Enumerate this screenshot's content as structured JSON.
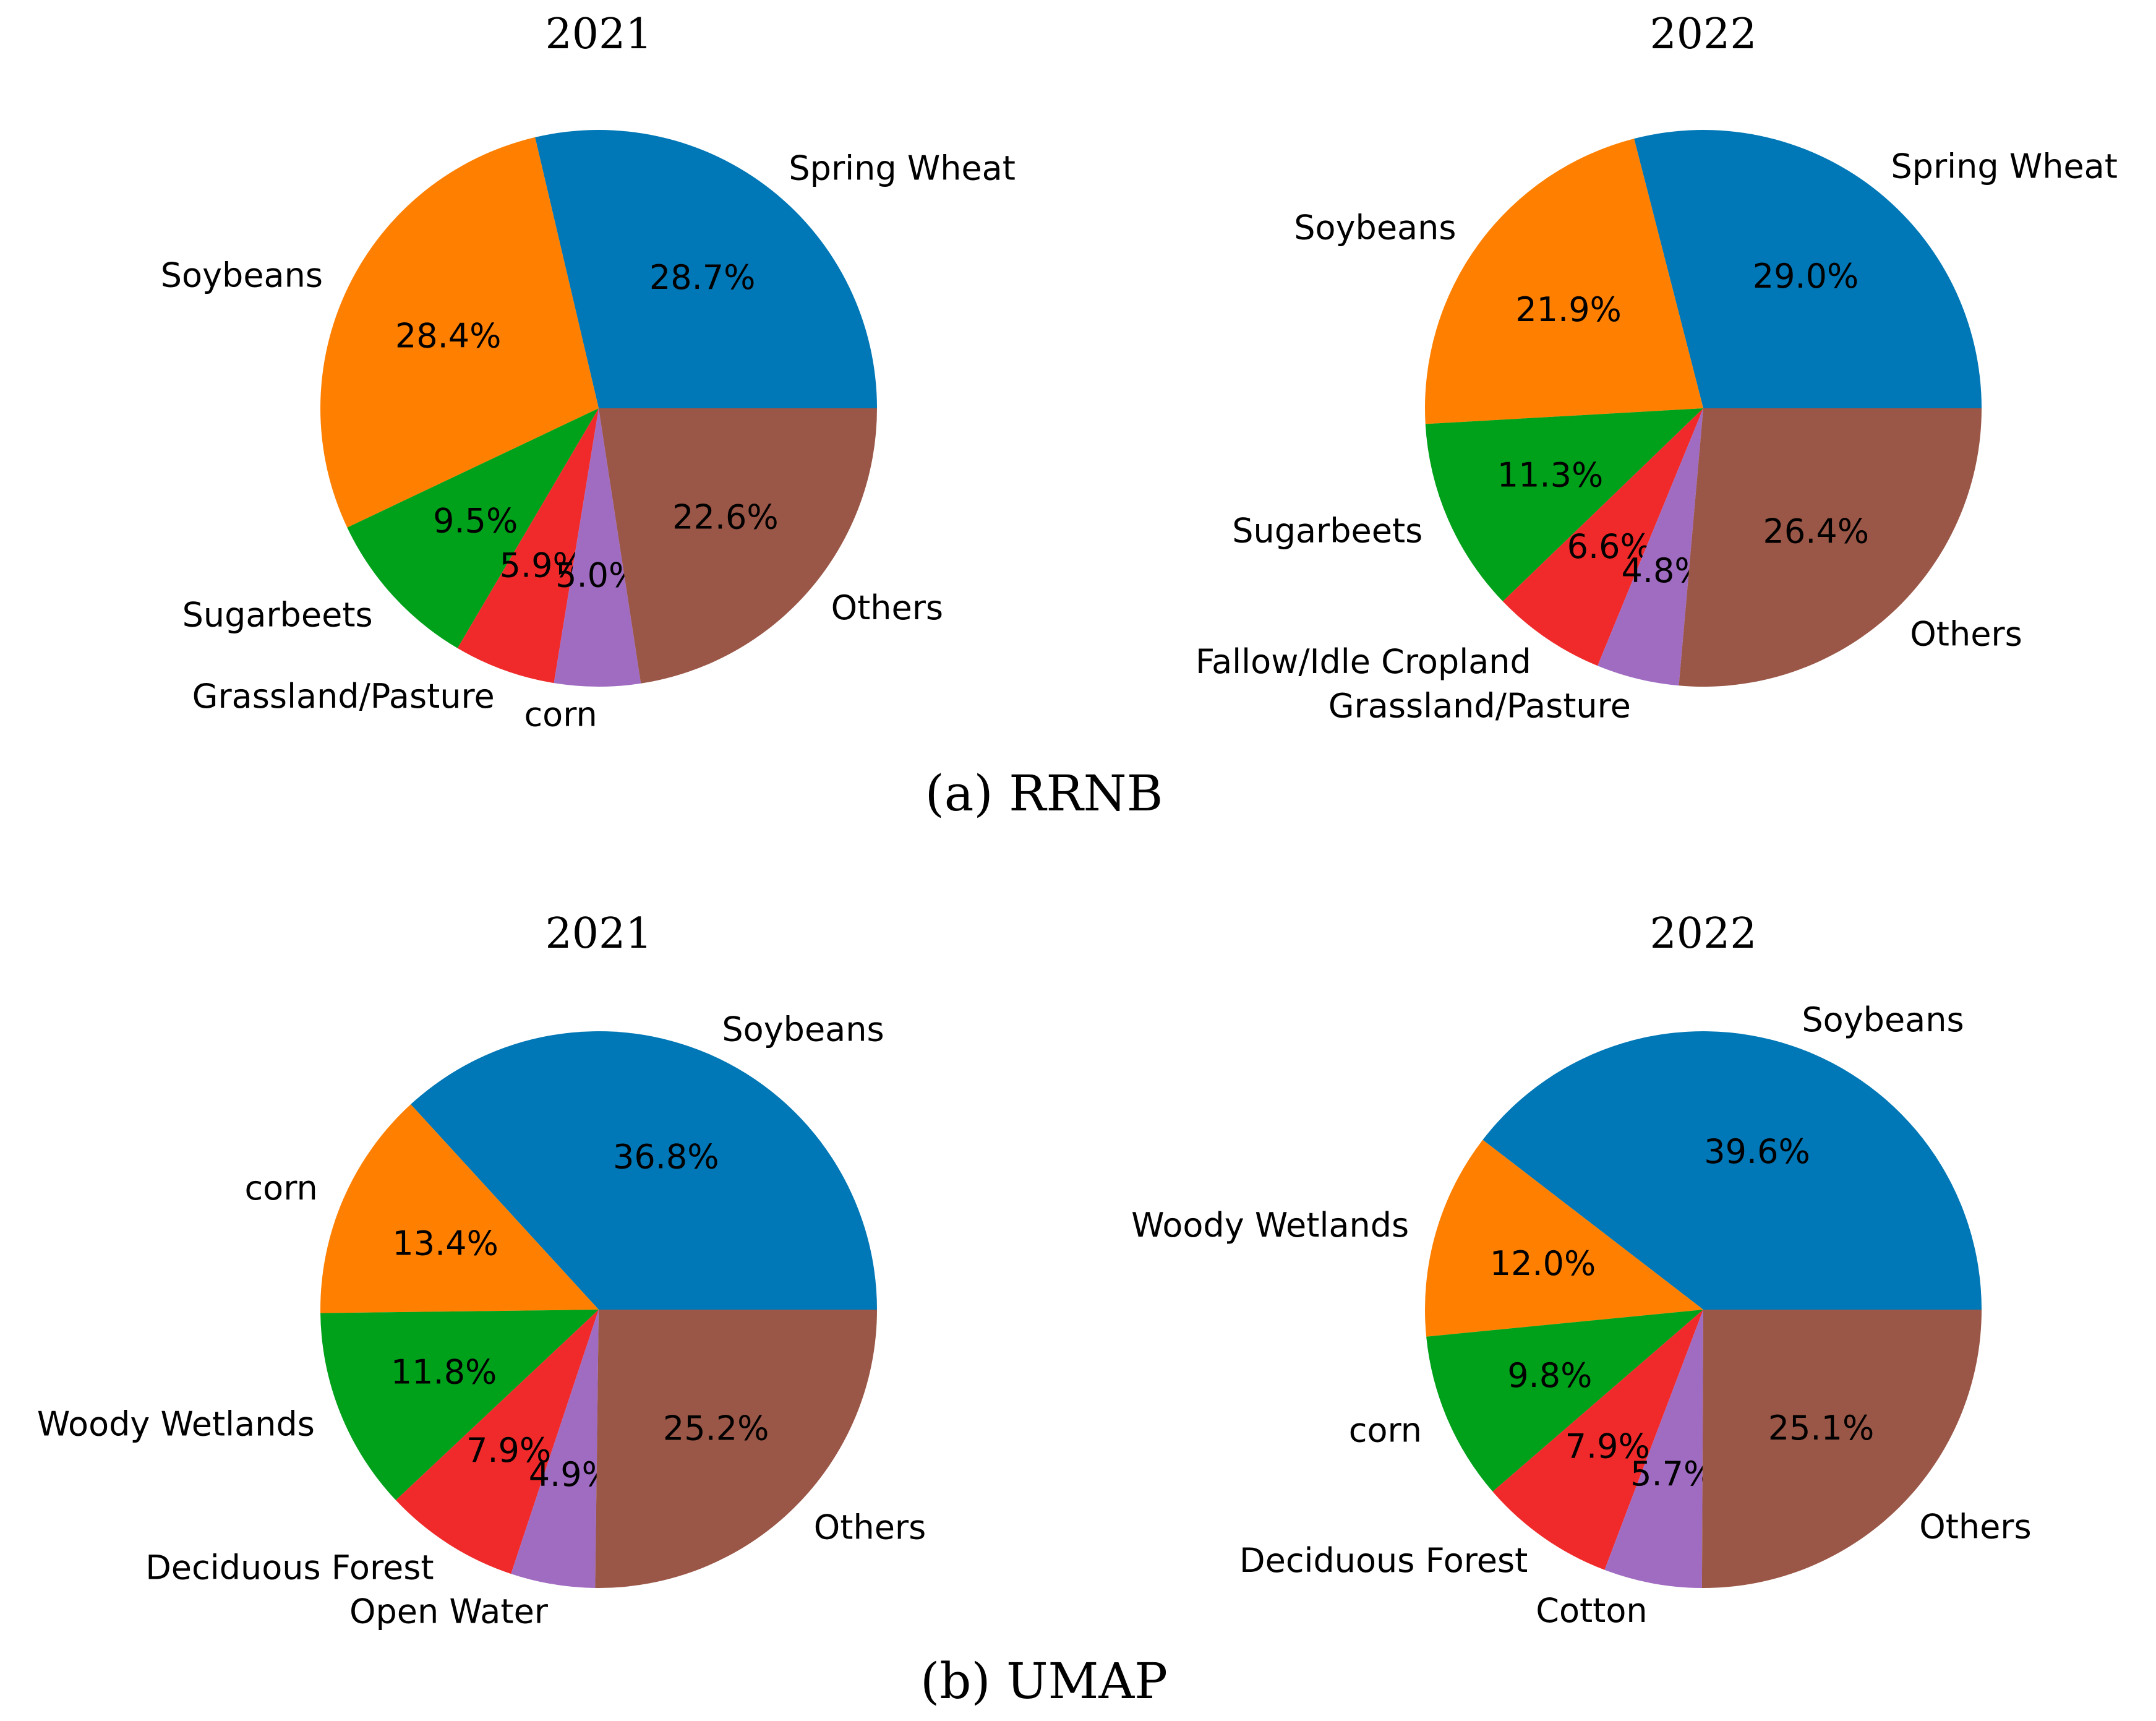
{
  "figure": {
    "captions": [
      "(a) RRNB",
      "(b) UMAP"
    ]
  },
  "colors": [
    "#0077b6",
    "#ff8000",
    "#00a11a",
    "#f02a2a",
    "#a06cc2",
    "#9a5646"
  ],
  "chart_data": [
    {
      "type": "pie",
      "panel": "(a) RRNB",
      "title": "2021",
      "start_angle_deg": 0,
      "direction": "counterclockwise",
      "labels": [
        "Spring Wheat",
        "Soybeans",
        "Sugarbeets",
        "Grassland/Pasture",
        "corn",
        "Others"
      ],
      "values": [
        28.7,
        28.4,
        9.5,
        5.9,
        5.0,
        22.6
      ],
      "pct_labels": [
        "28.7%",
        "28.4%",
        "9.5%",
        "5.9%",
        "5.0%",
        "22.6%"
      ]
    },
    {
      "type": "pie",
      "panel": "(a) RRNB",
      "title": "2022",
      "start_angle_deg": 0,
      "direction": "counterclockwise",
      "labels": [
        "Spring Wheat",
        "Soybeans",
        "Sugarbeets",
        "Fallow/Idle Cropland",
        "Grassland/Pasture",
        "Others"
      ],
      "values": [
        29.0,
        21.9,
        11.3,
        6.6,
        4.8,
        26.4
      ],
      "pct_labels": [
        "29.0%",
        "21.9%",
        "11.3%",
        "6.6%",
        "4.8%",
        "26.4%"
      ]
    },
    {
      "type": "pie",
      "panel": "(b) UMAP",
      "title": "2021",
      "start_angle_deg": 0,
      "direction": "counterclockwise",
      "labels": [
        "Soybeans",
        "corn",
        "Woody Wetlands",
        "Deciduous Forest",
        "Open Water",
        "Others"
      ],
      "values": [
        36.8,
        13.4,
        11.8,
        7.9,
        4.9,
        25.2
      ],
      "pct_labels": [
        "36.8%",
        "13.4%",
        "11.8%",
        "7.9%",
        "4.9%",
        "25.2%"
      ]
    },
    {
      "type": "pie",
      "panel": "(b) UMAP",
      "title": "2022",
      "start_angle_deg": 0,
      "direction": "counterclockwise",
      "labels": [
        "Soybeans",
        "Woody Wetlands",
        "corn",
        "Deciduous Forest",
        "Cotton",
        "Others"
      ],
      "values": [
        39.6,
        12.0,
        9.8,
        7.9,
        5.7,
        25.1
      ],
      "pct_labels": [
        "39.6%",
        "12.0%",
        "9.8%",
        "7.9%",
        "5.7%",
        "25.1%"
      ]
    }
  ]
}
